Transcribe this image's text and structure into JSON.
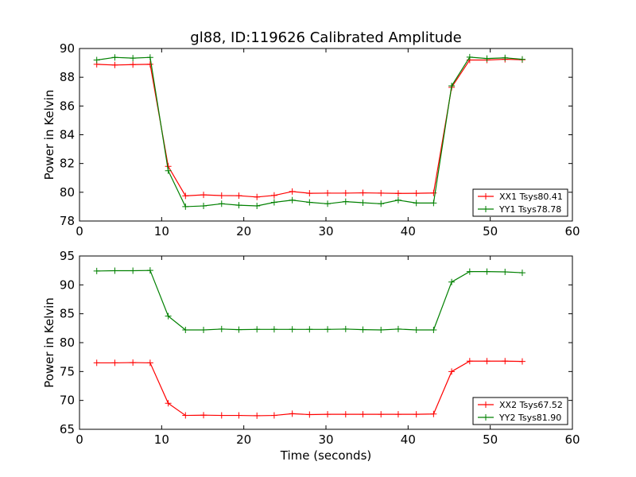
{
  "chart_data": [
    {
      "type": "line",
      "title": "gl88, ID:119626 Calibrated Amplitude",
      "xlabel": "",
      "ylabel": "Power in Kelvin",
      "xlim": [
        0,
        60
      ],
      "ylim": [
        78,
        90
      ],
      "xticks": [
        0,
        10,
        20,
        30,
        40,
        50,
        60
      ],
      "yticks": [
        78,
        80,
        82,
        84,
        86,
        88,
        90
      ],
      "grid": false,
      "legend_position": "lower-right",
      "x": [
        2.1,
        4.3,
        6.5,
        8.6,
        10.8,
        12.9,
        15.1,
        17.3,
        19.4,
        21.6,
        23.7,
        25.9,
        28.0,
        30.2,
        32.4,
        34.5,
        36.7,
        38.8,
        41.0,
        43.1,
        45.3,
        47.5,
        49.6,
        51.8,
        53.9
      ],
      "series": [
        {
          "name": "XX1 Tsys80.41",
          "color": "#ff0000",
          "values": [
            88.9,
            88.85,
            88.88,
            88.9,
            81.8,
            79.75,
            79.82,
            79.77,
            79.76,
            79.67,
            79.78,
            80.05,
            79.93,
            79.94,
            79.94,
            79.96,
            79.94,
            79.92,
            79.93,
            79.95,
            87.3,
            89.2,
            89.2,
            89.25,
            89.22
          ]
        },
        {
          "name": "YY1 Tsys78.78",
          "color": "#008000",
          "values": [
            89.2,
            89.38,
            89.33,
            89.38,
            81.5,
            79.0,
            79.05,
            79.2,
            79.1,
            79.05,
            79.3,
            79.45,
            79.3,
            79.2,
            79.35,
            79.27,
            79.2,
            79.45,
            79.25,
            79.25,
            87.4,
            89.4,
            89.3,
            89.35,
            89.25
          ]
        }
      ]
    },
    {
      "type": "line",
      "title": "",
      "xlabel": "Time (seconds)",
      "ylabel": "Power in Kelvin",
      "xlim": [
        0,
        60
      ],
      "ylim": [
        65,
        95
      ],
      "xticks": [
        0,
        10,
        20,
        30,
        40,
        50,
        60
      ],
      "yticks": [
        65,
        70,
        75,
        80,
        85,
        90,
        95
      ],
      "grid": false,
      "legend_position": "lower-right",
      "x": [
        2.1,
        4.3,
        6.5,
        8.6,
        10.8,
        12.9,
        15.1,
        17.3,
        19.4,
        21.6,
        23.7,
        25.9,
        28.0,
        30.2,
        32.4,
        34.5,
        36.7,
        38.8,
        41.0,
        43.1,
        45.3,
        47.5,
        49.6,
        51.8,
        53.9
      ],
      "series": [
        {
          "name": "XX2 Tsys67.52",
          "color": "#ff0000",
          "values": [
            76.5,
            76.5,
            76.55,
            76.5,
            69.5,
            67.4,
            67.45,
            67.4,
            67.4,
            67.35,
            67.4,
            67.7,
            67.55,
            67.6,
            67.6,
            67.6,
            67.6,
            67.6,
            67.6,
            67.65,
            75.0,
            76.8,
            76.8,
            76.8,
            76.75
          ]
        },
        {
          "name": "YY2 Tsys81.90",
          "color": "#008000",
          "values": [
            92.4,
            92.45,
            92.45,
            92.5,
            84.6,
            82.2,
            82.2,
            82.35,
            82.25,
            82.3,
            82.3,
            82.3,
            82.3,
            82.3,
            82.35,
            82.25,
            82.2,
            82.35,
            82.2,
            82.2,
            90.5,
            92.3,
            92.3,
            92.25,
            92.1
          ]
        }
      ]
    }
  ]
}
